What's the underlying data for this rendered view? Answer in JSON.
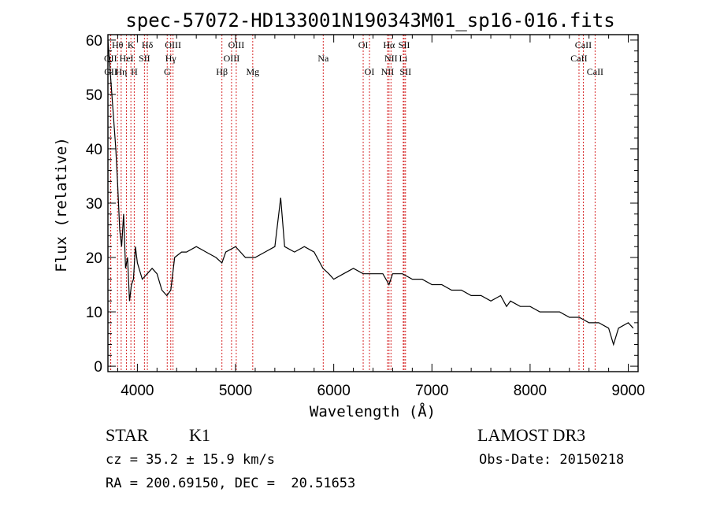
{
  "chart_data": {
    "type": "line",
    "title": "spec-57072-HD133001N190343M01_sp16-016.fits",
    "xlabel": "Wavelength (Å)",
    "ylabel": "Flux (relative)",
    "xlim": [
      3700,
      9100
    ],
    "ylim": [
      -1,
      61
    ],
    "xticks": [
      4000,
      5000,
      6000,
      7000,
      8000,
      9000
    ],
    "yticks": [
      0,
      10,
      20,
      30,
      40,
      50,
      60
    ],
    "grid": false,
    "line_color": "#000000",
    "marker_color": "#d62728",
    "series": [
      {
        "x": [
          3700,
          3720,
          3740,
          3760,
          3780,
          3800,
          3820,
          3840,
          3860,
          3880,
          3900,
          3920,
          3940,
          3960,
          3980,
          4000,
          4050,
          4100,
          4150,
          4200,
          4250,
          4300,
          4340,
          4380,
          4450,
          4500,
          4600,
          4700,
          4800,
          4861,
          4900,
          5000,
          5100,
          5200,
          5300,
          5400,
          5460,
          5500,
          5600,
          5700,
          5800,
          5890,
          5950,
          6000,
          6100,
          6200,
          6300,
          6400,
          6500,
          6563,
          6600,
          6700,
          6800,
          6900,
          7000,
          7100,
          7200,
          7300,
          7400,
          7500,
          7600,
          7700,
          7760,
          7800,
          7900,
          8000,
          8100,
          8200,
          8300,
          8400,
          8500,
          8600,
          8700,
          8800,
          8850,
          8900,
          9000,
          9050
        ],
        "values": [
          60,
          55,
          50,
          45,
          40,
          33,
          25,
          22,
          28,
          18,
          20,
          12,
          15,
          16,
          22,
          19,
          16,
          17,
          18,
          17,
          14,
          13,
          14,
          20,
          21,
          21,
          22,
          21,
          20,
          19,
          21,
          22,
          20,
          20,
          21,
          22,
          31,
          22,
          21,
          22,
          21,
          18,
          17,
          16,
          17,
          18,
          17,
          17,
          17,
          15,
          17,
          17,
          16,
          16,
          15,
          15,
          14,
          14,
          13,
          13,
          12,
          13,
          11,
          12,
          11,
          11,
          10,
          10,
          10,
          9,
          9,
          8,
          8,
          7,
          4,
          7,
          8,
          7
        ]
      }
    ],
    "line_markers": [
      {
        "label": "Hθ",
        "x": 3798,
        "row": 0
      },
      {
        "label": "K",
        "x": 3934,
        "row": 0
      },
      {
        "label": "Hδ",
        "x": 4102,
        "row": 0
      },
      {
        "label": "OIII",
        "x": 4363,
        "row": 0
      },
      {
        "label": "OIII",
        "x": 5007,
        "row": 0
      },
      {
        "label": "OI",
        "x": 6300,
        "row": 0
      },
      {
        "label": "Hα",
        "x": 6563,
        "row": 0
      },
      {
        "label": "SII",
        "x": 6717,
        "row": 0
      },
      {
        "label": "CaII",
        "x": 8542,
        "row": 0
      },
      {
        "label": "OII",
        "x": 3727,
        "row": 1
      },
      {
        "label": "HeI",
        "x": 3889,
        "row": 1
      },
      {
        "label": "SII",
        "x": 4072,
        "row": 1
      },
      {
        "label": "Hγ",
        "x": 4340,
        "row": 1
      },
      {
        "label": "OIII",
        "x": 4959,
        "row": 1
      },
      {
        "label": "Na",
        "x": 5893,
        "row": 1
      },
      {
        "label": "NII",
        "x": 6583,
        "row": 1
      },
      {
        "label": "Li",
        "x": 6708,
        "row": 1
      },
      {
        "label": "CaII",
        "x": 8498,
        "row": 1
      },
      {
        "label": "OII",
        "x": 3729,
        "row": 2
      },
      {
        "label": "Hη",
        "x": 3835,
        "row": 2
      },
      {
        "label": "H",
        "x": 3968,
        "row": 2
      },
      {
        "label": "G",
        "x": 4304,
        "row": 2
      },
      {
        "label": "Hβ",
        "x": 4861,
        "row": 2
      },
      {
        "label": "Mg",
        "x": 5175,
        "row": 2
      },
      {
        "label": "OI",
        "x": 6364,
        "row": 2
      },
      {
        "label": "NII",
        "x": 6548,
        "row": 2
      },
      {
        "label": "SII",
        "x": 6731,
        "row": 2
      },
      {
        "label": "CaII",
        "x": 8662,
        "row": 2
      }
    ]
  },
  "info": {
    "class_label": "STAR",
    "subclass": "K1",
    "cz": "cz = 35.2 ± 15.9 km/s",
    "coords": "RA = 200.69150, DEC =  20.51653",
    "survey": "LAMOST DR3",
    "obs_date": "Obs-Date: 20150218"
  }
}
